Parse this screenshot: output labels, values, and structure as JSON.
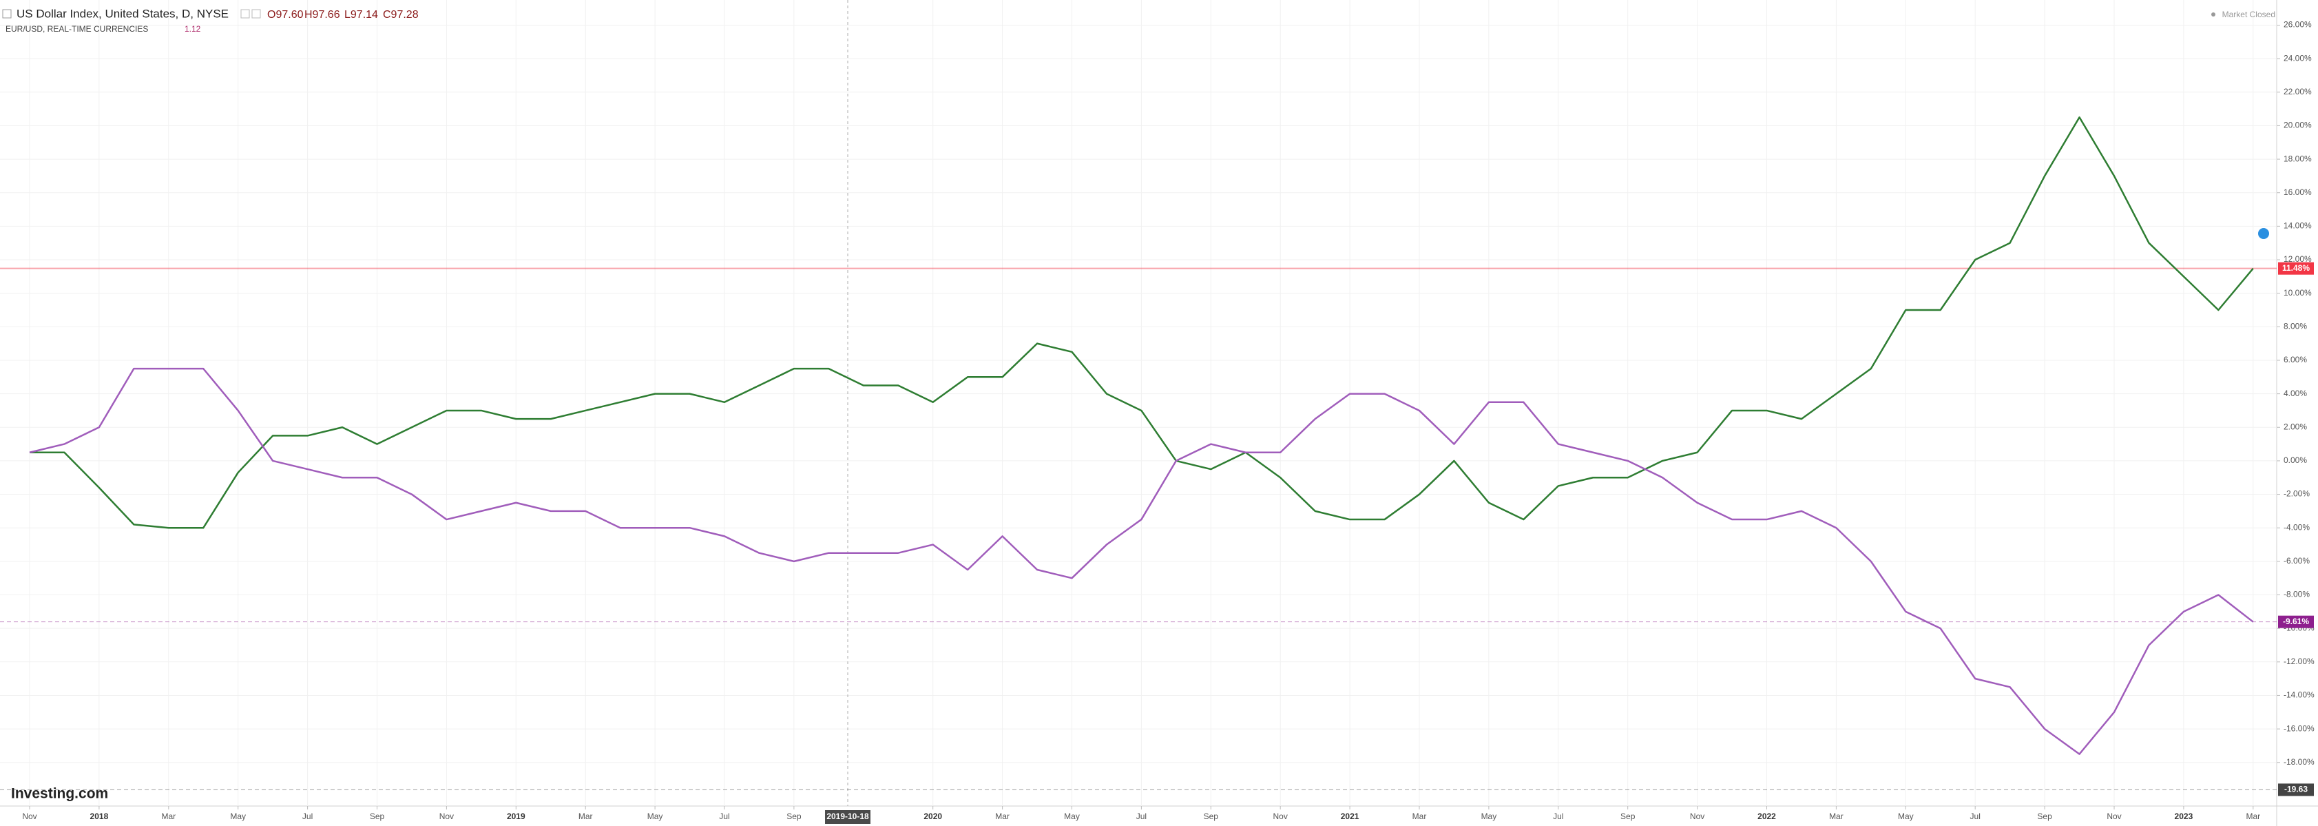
{
  "chart_data": {
    "type": "line",
    "ohlc": [
      "O97.60",
      "H97.66",
      "L97.14",
      "C97.28"
    ],
    "compare_value": "1.12",
    "status": "Market Closed",
    "brand": "Investing.com",
    "x": [
      "2017-11",
      "2017-12",
      "2018-01",
      "2018-02",
      "2018-03",
      "2018-04",
      "2018-05",
      "2018-06",
      "2018-07",
      "2018-08",
      "2018-09",
      "2018-10",
      "2018-11",
      "2018-12",
      "2019-01",
      "2019-02",
      "2019-03",
      "2019-04",
      "2019-05",
      "2019-06",
      "2019-07",
      "2019-08",
      "2019-09",
      "2019-10",
      "2019-11",
      "2019-12",
      "2020-01",
      "2020-02",
      "2020-03",
      "2020-04",
      "2020-05",
      "2020-06",
      "2020-07",
      "2020-08",
      "2020-09",
      "2020-10",
      "2020-11",
      "2020-12",
      "2021-01",
      "2021-02",
      "2021-03",
      "2021-04",
      "2021-05",
      "2021-06",
      "2021-07",
      "2021-08",
      "2021-09",
      "2021-10",
      "2021-11",
      "2021-12",
      "2022-01",
      "2022-02",
      "2022-03",
      "2022-04",
      "2022-05",
      "2022-06",
      "2022-07",
      "2022-08",
      "2022-09",
      "2022-10",
      "2022-11",
      "2022-12",
      "2023-01",
      "2023-02",
      "2023-03"
    ],
    "series": [
      {
        "name": "US Dollar Index, United States, D, NYSE",
        "color": "#2e7d32",
        "values": [
          0.5,
          0.5,
          -1.6,
          -3.8,
          -4,
          -4,
          -0.7,
          1.5,
          1.5,
          2,
          1,
          2,
          3,
          3,
          2.5,
          2.5,
          3,
          3.5,
          4,
          4,
          3.5,
          4.5,
          5.5,
          5.5,
          4.5,
          4.5,
          3.5,
          5,
          5,
          7,
          6.5,
          4,
          3,
          0,
          -0.5,
          0.5,
          -1,
          -3,
          -3.5,
          -3.5,
          -2,
          0,
          -2.5,
          -3.5,
          -1.5,
          -1,
          -1,
          0,
          0.5,
          3,
          3,
          2.5,
          4,
          5.5,
          9,
          9,
          12,
          13,
          17,
          20.5,
          17,
          13,
          11,
          9,
          11.48
        ]
      },
      {
        "name": "EUR/USD, REAL-TIME CURRENCIES",
        "color": "#a05dbb",
        "values": [
          0.5,
          1,
          2,
          5.5,
          5.5,
          5.5,
          3,
          0,
          -0.5,
          -1,
          -1,
          -2,
          -3.5,
          -3,
          -2.5,
          -3,
          -3,
          -4,
          -4,
          -4,
          -4.5,
          -5.5,
          -6,
          -5.5,
          -5.5,
          -5.5,
          -5,
          -6.5,
          -4.5,
          -6.5,
          -7,
          -5,
          -3.5,
          0,
          1,
          0.5,
          0.5,
          2.5,
          4,
          4,
          3,
          1,
          3.5,
          3.5,
          1,
          0.5,
          0,
          -1,
          -2.5,
          -3.5,
          -3.5,
          -3,
          -4,
          -6,
          -9,
          -10,
          -13,
          -13.5,
          -16,
          -17.5,
          -15,
          -11,
          -9,
          -8,
          -9.61
        ]
      }
    ],
    "annotations": [
      {
        "value": 11.48,
        "label": "11.48%",
        "color": "#f23645"
      },
      {
        "value": -9.61,
        "label": "-9.61%",
        "color": "#8e1f8e"
      },
      {
        "value": -19.63,
        "label": "-19.63",
        "color": "#444444"
      }
    ],
    "crosshair": {
      "x": "2019-10",
      "label": "2019-10-18"
    },
    "ylim": [
      -20.6,
      27.5
    ],
    "yticks": [
      {
        "value": 26,
        "label": "26.00%"
      },
      {
        "value": 24,
        "label": "24.00%"
      },
      {
        "value": 22,
        "label": "22.00%"
      },
      {
        "value": 20,
        "label": "20.00%"
      },
      {
        "value": 18,
        "label": "18.00%"
      },
      {
        "value": 16,
        "label": "16.00%"
      },
      {
        "value": 14,
        "label": "14.00%"
      },
      {
        "value": 12,
        "label": "12.00%"
      },
      {
        "value": 10,
        "label": "10.00%"
      },
      {
        "value": 8,
        "label": "8.00%"
      },
      {
        "value": 6,
        "label": "6.00%"
      },
      {
        "value": 4,
        "label": "4.00%"
      },
      {
        "value": 2,
        "label": "2.00%"
      },
      {
        "value": 0,
        "label": "0.00%"
      },
      {
        "value": -2,
        "label": "-2.00%"
      },
      {
        "value": -4,
        "label": "-4.00%"
      },
      {
        "value": -6,
        "label": "-6.00%"
      },
      {
        "value": -8,
        "label": "-8.00%"
      },
      {
        "value": -10,
        "label": "-10.00%"
      },
      {
        "value": -12,
        "label": "-12.00%"
      },
      {
        "value": -14,
        "label": "-14.00%"
      },
      {
        "value": -16,
        "label": "-16.00%"
      },
      {
        "value": -18,
        "label": "-18.00%"
      }
    ],
    "xticks": [
      {
        "value": "2017-11",
        "label": "Nov"
      },
      {
        "value": "2018-01",
        "label": "2018"
      },
      {
        "value": "2018-03",
        "label": "Mar"
      },
      {
        "value": "2018-05",
        "label": "May"
      },
      {
        "value": "2018-07",
        "label": "Jul"
      },
      {
        "value": "2018-09",
        "label": "Sep"
      },
      {
        "value": "2018-11",
        "label": "Nov"
      },
      {
        "value": "2019-01",
        "label": "2019"
      },
      {
        "value": "2019-03",
        "label": "Mar"
      },
      {
        "value": "2019-05",
        "label": "May"
      },
      {
        "value": "2019-07",
        "label": "Jul"
      },
      {
        "value": "2019-09",
        "label": "Sep"
      },
      {
        "value": "2020-01",
        "label": "2020"
      },
      {
        "value": "2020-03",
        "label": "Mar"
      },
      {
        "value": "2020-05",
        "label": "May"
      },
      {
        "value": "2020-07",
        "label": "Jul"
      },
      {
        "value": "2020-09",
        "label": "Sep"
      },
      {
        "value": "2020-11",
        "label": "Nov"
      },
      {
        "value": "2021-01",
        "label": "2021"
      },
      {
        "value": "2021-03",
        "label": "Mar"
      },
      {
        "value": "2021-05",
        "label": "May"
      },
      {
        "value": "2021-07",
        "label": "Jul"
      },
      {
        "value": "2021-09",
        "label": "Sep"
      },
      {
        "value": "2021-11",
        "label": "Nov"
      },
      {
        "value": "2022-01",
        "label": "2022"
      },
      {
        "value": "2022-03",
        "label": "Mar"
      },
      {
        "value": "2022-05",
        "label": "May"
      },
      {
        "value": "2022-07",
        "label": "Jul"
      },
      {
        "value": "2022-09",
        "label": "Sep"
      },
      {
        "value": "2022-11",
        "label": "Nov"
      },
      {
        "value": "2023-01",
        "label": "2023"
      },
      {
        "value": "2023-03",
        "label": "Mar"
      }
    ],
    "grid": true
  }
}
